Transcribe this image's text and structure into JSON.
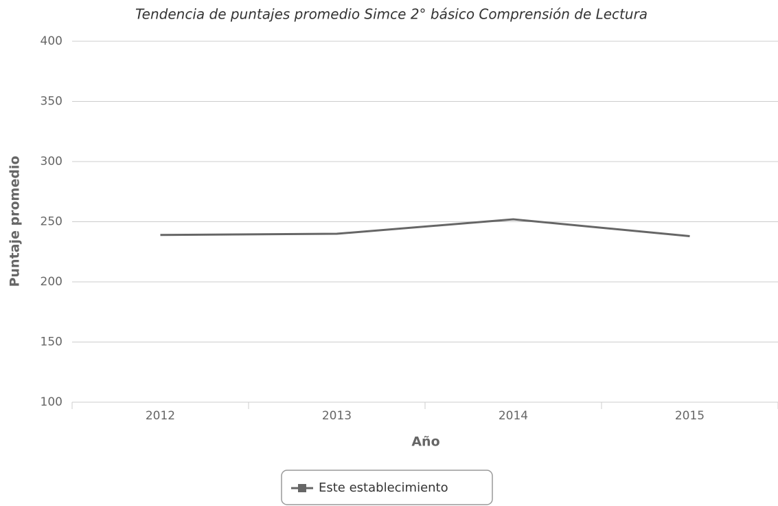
{
  "chart_data": {
    "type": "line",
    "title": "Tendencia de puntajes promedio Simce 2° básico Comprensión de Lectura",
    "x_label": "Año",
    "y_label": "Puntaje promedio",
    "categories": [
      "2012",
      "2013",
      "2014",
      "2015"
    ],
    "series": [
      {
        "name": "Este establecimiento",
        "color": "#666666",
        "values": [
          239,
          240,
          252,
          238
        ]
      }
    ],
    "ylim": [
      100,
      400
    ],
    "yticks": [
      100,
      150,
      200,
      250,
      300,
      350,
      400
    ],
    "grid": true,
    "legend": "bottom"
  }
}
